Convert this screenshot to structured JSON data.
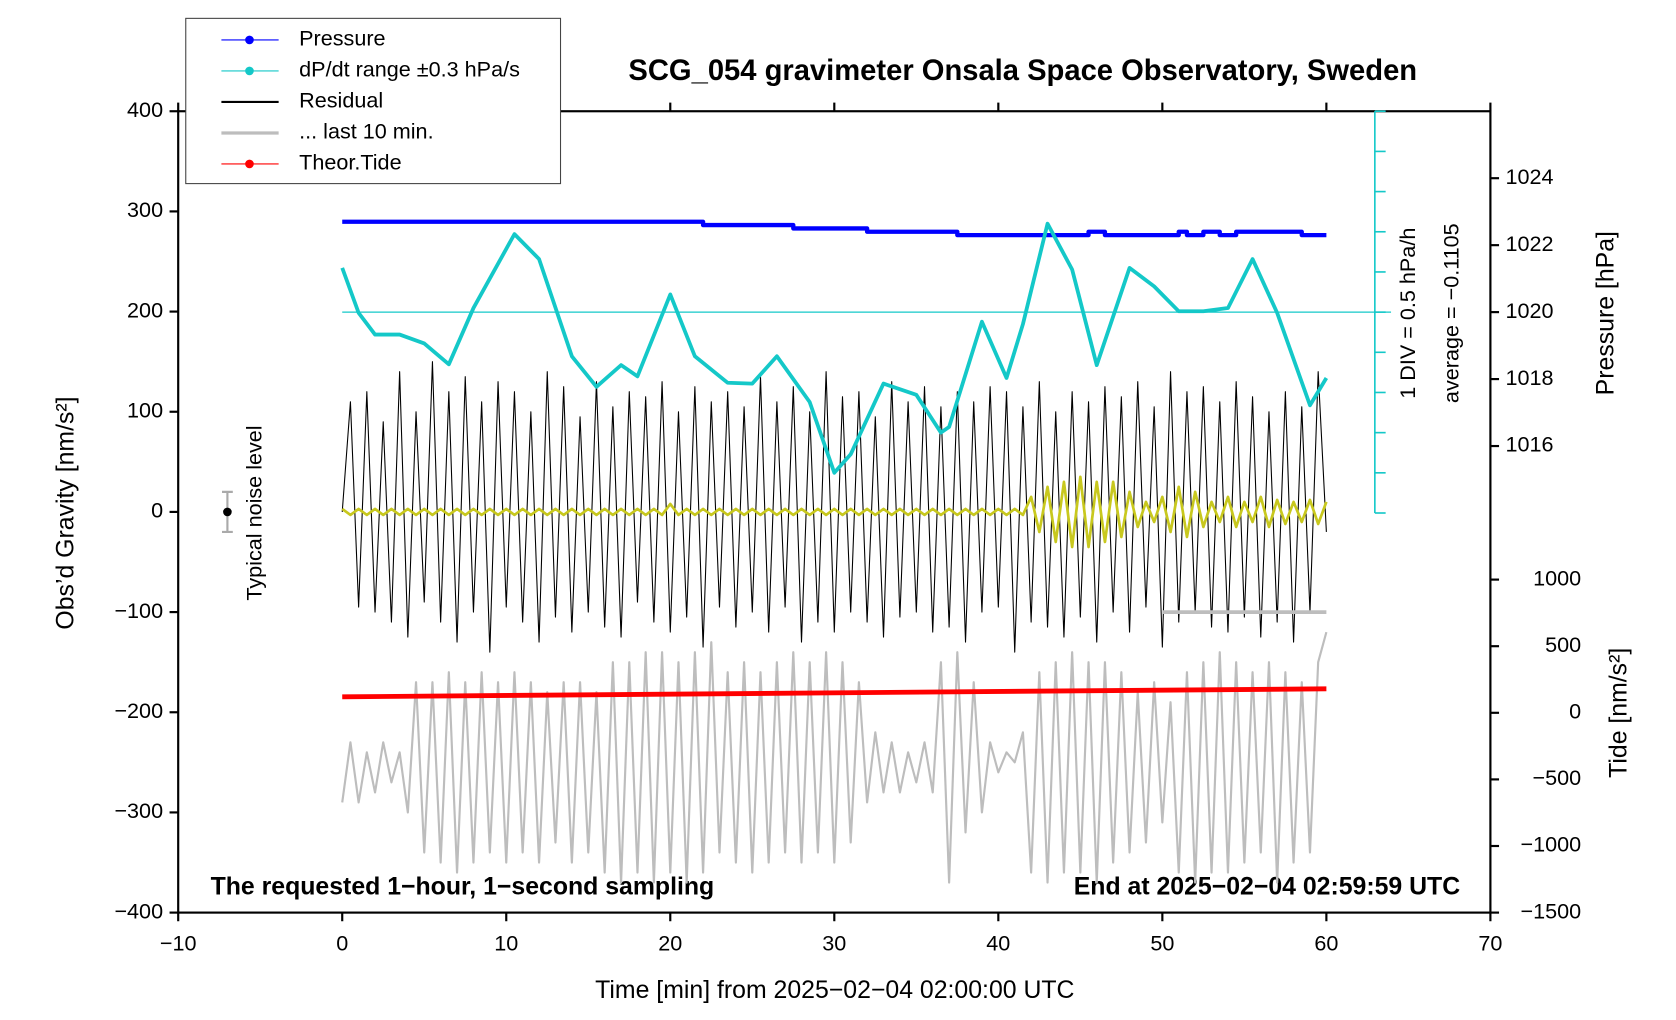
{
  "chart_data": {
    "type": "line",
    "title": "SCG_054 gravimeter Onsala Space Observatory, Sweden",
    "x_label": "Time [min] from 2025−02−04 02:00:00 UTC",
    "y_label": "Obs’d Gravity [nm/s²]",
    "y2_label": "Pressure [hPa]",
    "y3_label": "Tide [nm/s²]",
    "annotations": [
      "The requested 1−hour, 1−second sampling",
      "End at 2025−02−04 02:59:59 UTC",
      "Typical noise level",
      "1 DIV = 0.5 hPa/h",
      "average = −0.1105"
    ],
    "dpdt_average": -0.1105,
    "xlim": [
      -10,
      70
    ],
    "xticks": [
      {
        "value": -10,
        "label": "−10"
      },
      0,
      10,
      20,
      30,
      40,
      50,
      60,
      70
    ],
    "ylim": [
      -400,
      400
    ],
    "yticks": [
      {
        "value": -400,
        "label": "−400"
      },
      {
        "value": -300,
        "label": "−300"
      },
      {
        "value": -200,
        "label": "−200"
      },
      {
        "value": -100,
        "label": "−100"
      },
      0,
      100,
      200,
      300,
      400
    ],
    "y2lim": [
      1014,
      1026
    ],
    "y2ticks": [
      1016,
      1018,
      1020,
      1022,
      1024
    ],
    "y3lim": [
      -1500,
      1500
    ],
    "y3ticks": [
      {
        "value": -1500,
        "label": "−1500"
      },
      {
        "value": -1000,
        "label": "−1000"
      },
      {
        "value": -500,
        "label": "−500"
      },
      0,
      500,
      1000
    ],
    "y4lim": [
      -2.6105,
      2.3895
    ],
    "y4ticks": [
      -2.6105,
      -2.1105,
      -1.6105,
      -1.1105,
      -0.6105,
      -0.1105,
      0.3895,
      0.8895,
      1.3895,
      1.8895,
      2.3895
    ],
    "legend": "top-left",
    "noise_level": {
      "x": -7,
      "value": 0,
      "error": 20
    },
    "x": [
      0,
      0.5,
      1,
      1.5,
      2,
      2.5,
      3,
      3.5,
      4,
      4.5,
      5,
      5.5,
      6,
      6.5,
      7,
      7.5,
      8,
      8.5,
      9,
      9.5,
      10,
      10.5,
      11,
      11.5,
      12,
      12.5,
      13,
      13.5,
      14,
      14.5,
      15,
      15.5,
      16,
      16.5,
      17,
      17.5,
      18,
      18.5,
      19,
      19.5,
      20,
      20.5,
      21,
      21.5,
      22,
      22.5,
      23,
      23.5,
      24,
      24.5,
      25,
      25.5,
      26,
      26.5,
      27,
      27.5,
      28,
      28.5,
      29,
      29.5,
      30,
      30.5,
      31,
      31.5,
      32,
      32.5,
      33,
      33.5,
      34,
      34.5,
      35,
      35.5,
      36,
      36.5,
      37,
      37.5,
      38,
      38.5,
      39,
      39.5,
      40,
      40.5,
      41,
      41.5,
      42,
      42.5,
      43,
      43.5,
      44,
      44.5,
      45,
      45.5,
      46,
      46.5,
      47,
      47.5,
      48,
      48.5,
      49,
      49.5,
      50,
      50.5,
      51,
      51.5,
      52,
      52.5,
      53,
      53.5,
      54,
      54.5,
      55,
      55.5,
      56,
      56.5,
      57,
      57.5,
      58,
      58.5,
      59,
      59.5,
      60
    ],
    "background_trace": {
      "color": "#bdbdbd",
      "values": [
        -290,
        -230,
        -290,
        -240,
        -280,
        -230,
        -270,
        -240,
        -300,
        -170,
        -340,
        -170,
        -350,
        -160,
        -360,
        -170,
        -350,
        -160,
        -340,
        -170,
        -350,
        -160,
        -340,
        -170,
        -350,
        -180,
        -330,
        -170,
        -350,
        -170,
        -340,
        -180,
        -360,
        -150,
        -370,
        -150,
        -360,
        -140,
        -370,
        -140,
        -360,
        -150,
        -370,
        -140,
        -360,
        -130,
        -340,
        -160,
        -350,
        -150,
        -360,
        -160,
        -350,
        -150,
        -340,
        -140,
        -350,
        -150,
        -340,
        -140,
        -350,
        -150,
        -330,
        -170,
        -290,
        -220,
        -280,
        -230,
        -280,
        -240,
        -270,
        -230,
        -280,
        -150,
        -370,
        -140,
        -320,
        -170,
        -300,
        -230,
        -260,
        -240,
        -250,
        -220,
        -360,
        -160,
        -370,
        -150,
        -360,
        -140,
        -360,
        -150,
        -370,
        -150,
        -350,
        -160,
        -340,
        -180,
        -330,
        -170,
        -310,
        -190,
        -360,
        -160,
        -370,
        -150,
        -360,
        -140,
        -360,
        -150,
        -350,
        -160,
        -340,
        -150,
        -370,
        -160,
        -350,
        -170,
        -340,
        -150,
        -120
      ]
    },
    "filtered_trace": {
      "color": "#c8c81e",
      "values": [
        3,
        -3,
        3,
        -3,
        3,
        -3,
        3,
        -3,
        3,
        -3,
        3,
        -3,
        3,
        -3,
        3,
        -3,
        3,
        -3,
        3,
        -3,
        3,
        -3,
        3,
        -3,
        3,
        -3,
        3,
        -3,
        3,
        -3,
        3,
        -3,
        3,
        -3,
        3,
        -3,
        3,
        -3,
        3,
        -3,
        8,
        -3,
        3,
        -3,
        3,
        -3,
        3,
        -3,
        3,
        -3,
        3,
        -3,
        3,
        -3,
        3,
        -3,
        3,
        -3,
        3,
        -3,
        3,
        -3,
        3,
        -3,
        3,
        -3,
        3,
        -3,
        3,
        -3,
        3,
        -3,
        3,
        -3,
        3,
        -3,
        3,
        -3,
        3,
        -3,
        3,
        -3,
        3,
        -3,
        15,
        -20,
        25,
        -30,
        30,
        -35,
        35,
        -35,
        30,
        -30,
        30,
        -25,
        20,
        -15,
        10,
        -10,
        15,
        -20,
        25,
        -25,
        20,
        -15,
        10,
        -10,
        15,
        -15,
        10,
        -10,
        15,
        -15,
        12,
        -12,
        10,
        -10,
        12,
        -12,
        10
      ]
    },
    "series": [
      {
        "name": "Pressure",
        "color": "#0000ff",
        "axis": "y2",
        "marker": true,
        "x": [
          0,
          22,
          22,
          27.5,
          27.5,
          32,
          32,
          37.5,
          37.5,
          45.5,
          45.5,
          46.5,
          46.5,
          51,
          51,
          51.5,
          51.5,
          52.5,
          52.5,
          53.5,
          53.5,
          54.5,
          54.5,
          58.5,
          58.5,
          60
        ],
        "values": [
          1022.7,
          1022.7,
          1022.6,
          1022.6,
          1022.5,
          1022.5,
          1022.4,
          1022.4,
          1022.3,
          1022.3,
          1022.4,
          1022.4,
          1022.3,
          1022.3,
          1022.4,
          1022.4,
          1022.3,
          1022.3,
          1022.4,
          1022.4,
          1022.3,
          1022.3,
          1022.4,
          1022.4,
          1022.3,
          1022.3
        ]
      },
      {
        "name": "dP/dt range ±0.3 hPa/s",
        "color": "#14c8c8",
        "axis": "y4",
        "marker": true,
        "x": [
          0,
          1,
          2,
          3.5,
          5,
          6.5,
          8,
          10.5,
          12,
          14,
          15.5,
          17,
          18,
          20,
          21.5,
          23.5,
          25,
          26.5,
          28.5,
          30,
          31,
          33,
          35,
          36.5,
          37,
          39,
          40.5,
          41.5,
          43,
          44.5,
          46,
          48,
          49.5,
          51,
          52.5,
          54,
          55.5,
          57,
          59,
          60
        ],
        "values": [
          0.44,
          -0.12,
          -0.39,
          -0.39,
          -0.5,
          -0.76,
          -0.06,
          0.86,
          0.55,
          -0.66,
          -1.04,
          -0.77,
          -0.91,
          0.11,
          -0.66,
          -0.99,
          -1.0,
          -0.66,
          -1.23,
          -2.11,
          -1.88,
          -1.0,
          -1.14,
          -1.61,
          -1.54,
          -0.23,
          -0.93,
          -0.26,
          0.99,
          0.42,
          -0.77,
          0.44,
          0.21,
          -0.1,
          -0.1,
          -0.06,
          0.55,
          -0.12,
          -1.27,
          -0.93
        ]
      },
      {
        "name": "Residual",
        "color": "#000000",
        "values": [
          0,
          110,
          -95,
          120,
          -100,
          90,
          -110,
          140,
          -125,
          100,
          -90,
          150,
          -110,
          120,
          -130,
          135,
          -100,
          110,
          -140,
          130,
          -95,
          120,
          -110,
          100,
          -130,
          140,
          -105,
          125,
          -120,
          95,
          -100,
          130,
          -115,
          105,
          -125,
          120,
          -90,
          115,
          -110,
          130,
          -120,
          100,
          -105,
          125,
          -135,
          110,
          -95,
          120,
          -115,
          105,
          -100,
          135,
          -120,
          110,
          -95,
          125,
          -130,
          100,
          -110,
          140,
          -120,
          115,
          -100,
          120,
          -110,
          95,
          -125,
          130,
          -105,
          110,
          -100,
          125,
          -120,
          105,
          -115,
          120,
          -130,
          110,
          -100,
          125,
          -95,
          120,
          -140,
          105,
          -110,
          130,
          -115,
          100,
          -125,
          120,
          -105,
          110,
          -130,
          125,
          -100,
          115,
          -120,
          130,
          -95,
          105,
          -135,
          140,
          -110,
          120,
          -100,
          125,
          -115,
          110,
          -120,
          130,
          -105,
          115,
          -125,
          100,
          -110,
          120,
          -130,
          105,
          -100,
          140,
          -20
        ]
      },
      {
        "name": "... last 10 min.",
        "color": "#bdbdbd",
        "x": [
          50,
          60
        ],
        "values": [
          -100,
          -100
        ]
      },
      {
        "name": "Theor.Tide",
        "color": "#ff0000",
        "axis": "y3",
        "marker": true,
        "x": [
          0,
          60
        ],
        "values": [
          120,
          180
        ]
      }
    ]
  }
}
